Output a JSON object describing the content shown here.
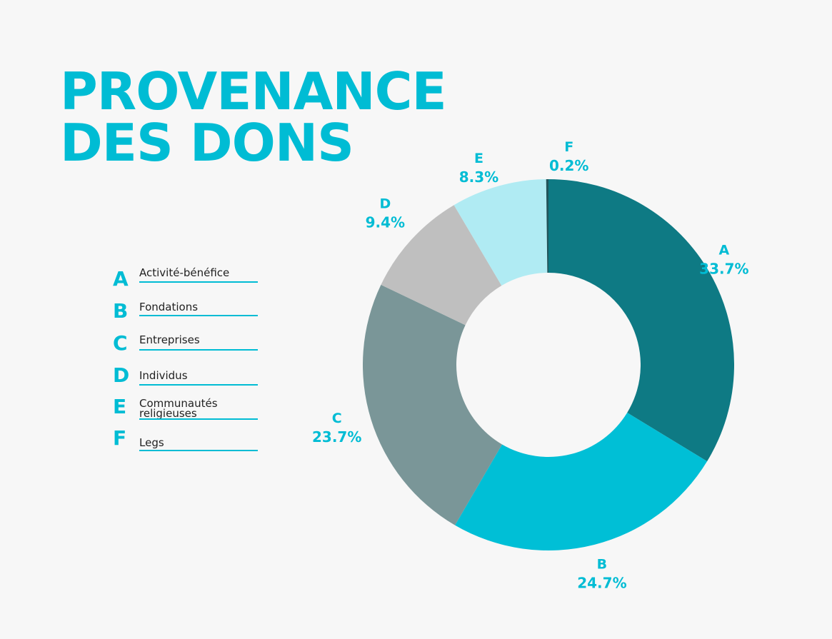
{
  "title": {
    "line1": "PROVENANCE",
    "line2": "DES DONS"
  },
  "legend": [
    {
      "letter": "A",
      "label": "Activité-bénéfice"
    },
    {
      "letter": "B",
      "label": "Fondations"
    },
    {
      "letter": "C",
      "label": "Entreprises"
    },
    {
      "letter": "D",
      "label": "Individus"
    },
    {
      "letter": "E",
      "label": "Communautés religieuses"
    },
    {
      "letter": "F",
      "label": "Legs"
    }
  ],
  "colors": {
    "accent": "#00bcd4",
    "A": "#0e7a84",
    "B": "#00bfd6",
    "C": "#7a9698",
    "D": "#bfbfbf",
    "E": "#b0ebf3",
    "F": "#21545a"
  },
  "chart_data": {
    "type": "pie",
    "donut": true,
    "title": "PROVENANCE DES DONS",
    "categories": [
      "A",
      "B",
      "C",
      "D",
      "E",
      "F"
    ],
    "values": [
      33.7,
      24.7,
      23.7,
      9.4,
      8.3,
      0.2
    ],
    "value_labels": [
      "33.7%",
      "24.7%",
      "23.7%",
      "9.4%",
      "8.3%",
      "0.2%"
    ],
    "legend": [
      "Activité-bénéfice",
      "Fondations",
      "Entreprises",
      "Individus",
      "Communautés religieuses",
      "Legs"
    ],
    "legend_position": "left"
  }
}
